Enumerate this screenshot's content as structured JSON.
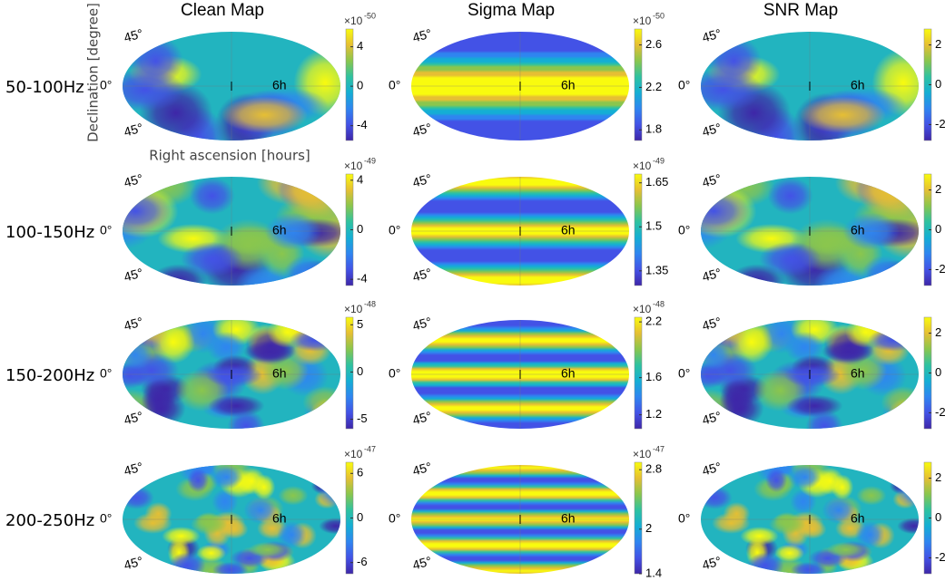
{
  "column_titles": [
    "Clean Map",
    "Sigma Map",
    "SNR Map"
  ],
  "axis_labels": {
    "y": "Declination [degree]",
    "x": "Right ascension [hours]"
  },
  "map_labels": {
    "dec_top": "45°",
    "dec_mid": "0°",
    "dec_bottom": "45°",
    "ra": "6h"
  },
  "rows": [
    {
      "label": "50-100Hz",
      "panels": [
        {
          "exponent": {
            "base": "×10",
            "power": "-50"
          },
          "clim": [
            -5.5,
            5.8
          ],
          "ticks": [
            4,
            0,
            -4
          ]
        },
        {
          "exponent": {
            "base": "×10",
            "power": "-50"
          },
          "clim": [
            1.7,
            2.75
          ],
          "ticks": [
            2.6,
            2.2,
            1.8
          ]
        },
        {
          "clim": [
            -2.8,
            2.8
          ],
          "ticks": [
            2,
            0,
            -2
          ]
        }
      ]
    },
    {
      "label": "100-150Hz",
      "panels": [
        {
          "exponent": {
            "base": "×10",
            "power": "-49"
          },
          "clim": [
            -4.5,
            4.5
          ],
          "ticks": [
            4,
            0,
            -4
          ]
        },
        {
          "exponent": {
            "base": "×10",
            "power": "-49"
          },
          "clim": [
            1.3,
            1.68
          ],
          "ticks": [
            1.65,
            1.5,
            1.35
          ]
        },
        {
          "clim": [
            -2.8,
            2.8
          ],
          "ticks": [
            2,
            0,
            -2
          ]
        }
      ]
    },
    {
      "label": "150-200Hz",
      "panels": [
        {
          "exponent": {
            "base": "×10",
            "power": "-48"
          },
          "clim": [
            -6,
            5.8
          ],
          "ticks": [
            5,
            0,
            -5
          ]
        },
        {
          "exponent": {
            "base": "×10",
            "power": "-48"
          },
          "clim": [
            1.05,
            2.25
          ],
          "ticks": [
            2.2,
            1.6,
            1.2
          ]
        },
        {
          "clim": [
            -2.8,
            2.8
          ],
          "ticks": [
            2,
            0,
            -2
          ]
        }
      ]
    },
    {
      "label": "200-250Hz",
      "panels": [
        {
          "exponent": {
            "base": "×10",
            "power": "-47"
          },
          "clim": [
            -7.5,
            7.5
          ],
          "ticks": [
            6,
            0,
            -6
          ]
        },
        {
          "exponent": {
            "base": "×10",
            "power": "-47"
          },
          "clim": [
            1.4,
            2.9
          ],
          "ticks": [
            2.8,
            2,
            1.4
          ]
        },
        {
          "clim": [
            -2.8,
            2.8
          ],
          "ticks": [
            2,
            0,
            -2
          ]
        }
      ]
    }
  ]
}
